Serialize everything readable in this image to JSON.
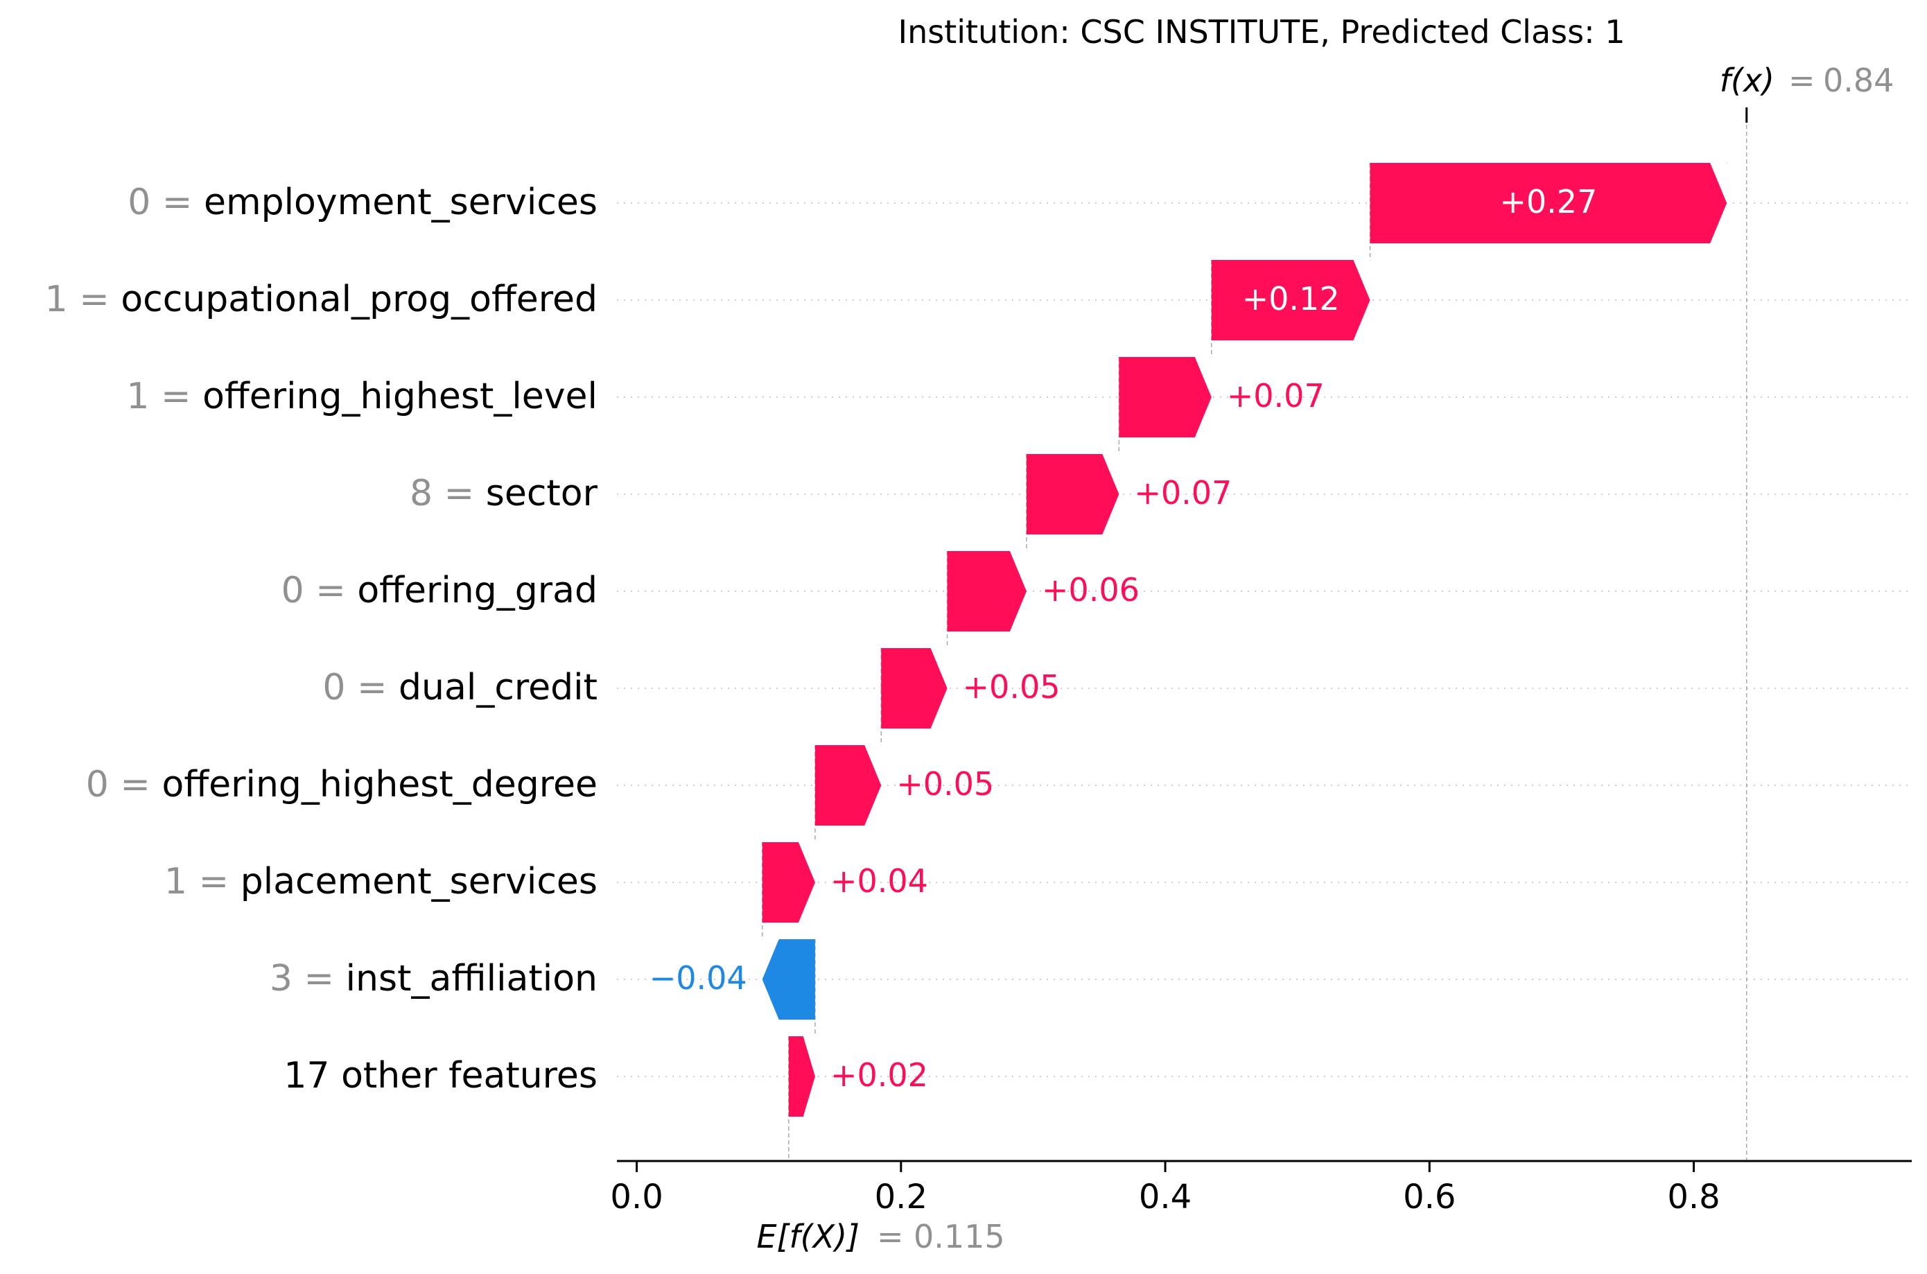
{
  "chart_data": {
    "type": "waterfall",
    "title": "Institution: CSC INSTITUTE, Predicted Class: 1",
    "base_value": 0.115,
    "base_value_label": "0.115",
    "base_label": "E[f(X)]",
    "output_value": 0.84,
    "output_value_label": "0.84",
    "output_label": "f(x)",
    "xlim": [
      -0.015,
      0.965
    ],
    "xticks": [
      0.0,
      0.2,
      0.4,
      0.6,
      0.8
    ],
    "xtick_labels": [
      "0.0",
      "0.2",
      "0.4",
      "0.6",
      "0.8"
    ],
    "features": [
      {
        "value": "0",
        "name": "employment_services",
        "contribution": 0.27,
        "label": "+0.27"
      },
      {
        "value": "1",
        "name": "occupational_prog_offered",
        "contribution": 0.12,
        "label": "+0.12"
      },
      {
        "value": "1",
        "name": "offering_highest_level",
        "contribution": 0.07,
        "label": "+0.07"
      },
      {
        "value": "8",
        "name": "sector",
        "contribution": 0.07,
        "label": "+0.07"
      },
      {
        "value": "0",
        "name": "offering_grad",
        "contribution": 0.06,
        "label": "+0.06"
      },
      {
        "value": "0",
        "name": "dual_credit",
        "contribution": 0.05,
        "label": "+0.05"
      },
      {
        "value": "0",
        "name": "offering_highest_degree",
        "contribution": 0.05,
        "label": "+0.05"
      },
      {
        "value": "1",
        "name": "placement_services",
        "contribution": 0.04,
        "label": "+0.04"
      },
      {
        "value": "3",
        "name": "inst_affiliation",
        "contribution": -0.04,
        "label": "−0.04"
      },
      {
        "value": "",
        "name": "17 other features",
        "contribution": 0.02,
        "label": "+0.02"
      }
    ],
    "colors": {
      "positive": "#ff0d57",
      "negative": "#1e88e5",
      "axis": "#000000",
      "muted_text": "#909090",
      "gridline": "#cccccc"
    },
    "grid": "dotted row guides"
  }
}
